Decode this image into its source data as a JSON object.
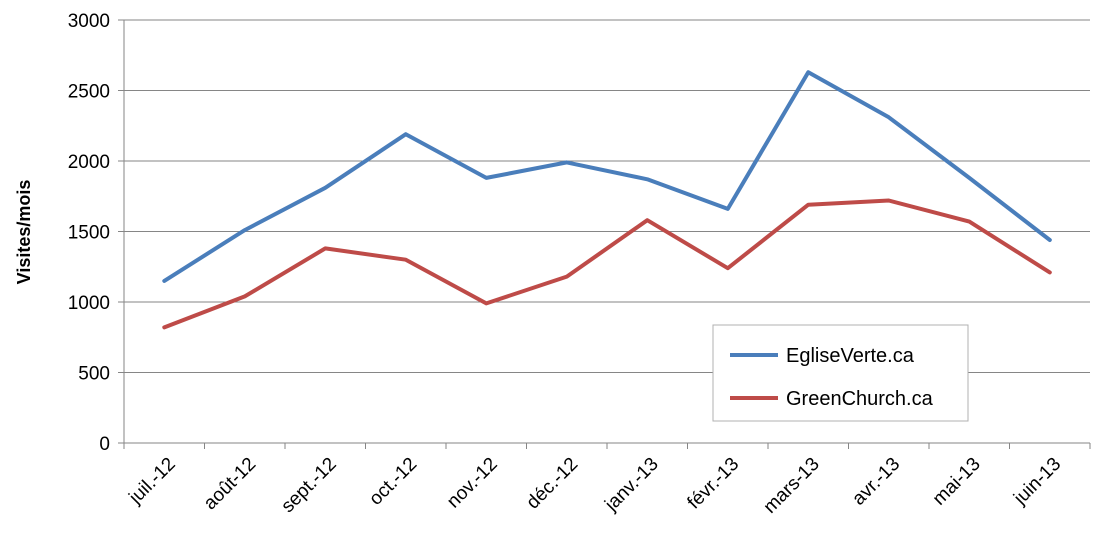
{
  "chart_data": {
    "type": "line",
    "title": "",
    "xlabel": "",
    "ylabel": "Visites/mois",
    "categories": [
      "juil.-12",
      "août-12",
      "sept.-12",
      "oct.-12",
      "nov.-12",
      "déc.-12",
      "janv.-13",
      "févr.-13",
      "mars-13",
      "avr.-13",
      "mai-13",
      "juin-13"
    ],
    "ylim": [
      0,
      3000
    ],
    "yticks": [
      0,
      500,
      1000,
      1500,
      2000,
      2500,
      3000
    ],
    "grid": true,
    "legend_position": "bottom-right",
    "series": [
      {
        "name": "EgliseVerte.ca",
        "color": "#4a7ebb",
        "values": [
          1150,
          1510,
          1810,
          2190,
          1880,
          1990,
          1870,
          1660,
          2630,
          2310,
          1880,
          1440
        ]
      },
      {
        "name": "GreenChurch.ca",
        "color": "#be4b48",
        "values": [
          820,
          1040,
          1380,
          1300,
          990,
          1180,
          1580,
          1240,
          1690,
          1720,
          1570,
          1210
        ]
      }
    ]
  }
}
